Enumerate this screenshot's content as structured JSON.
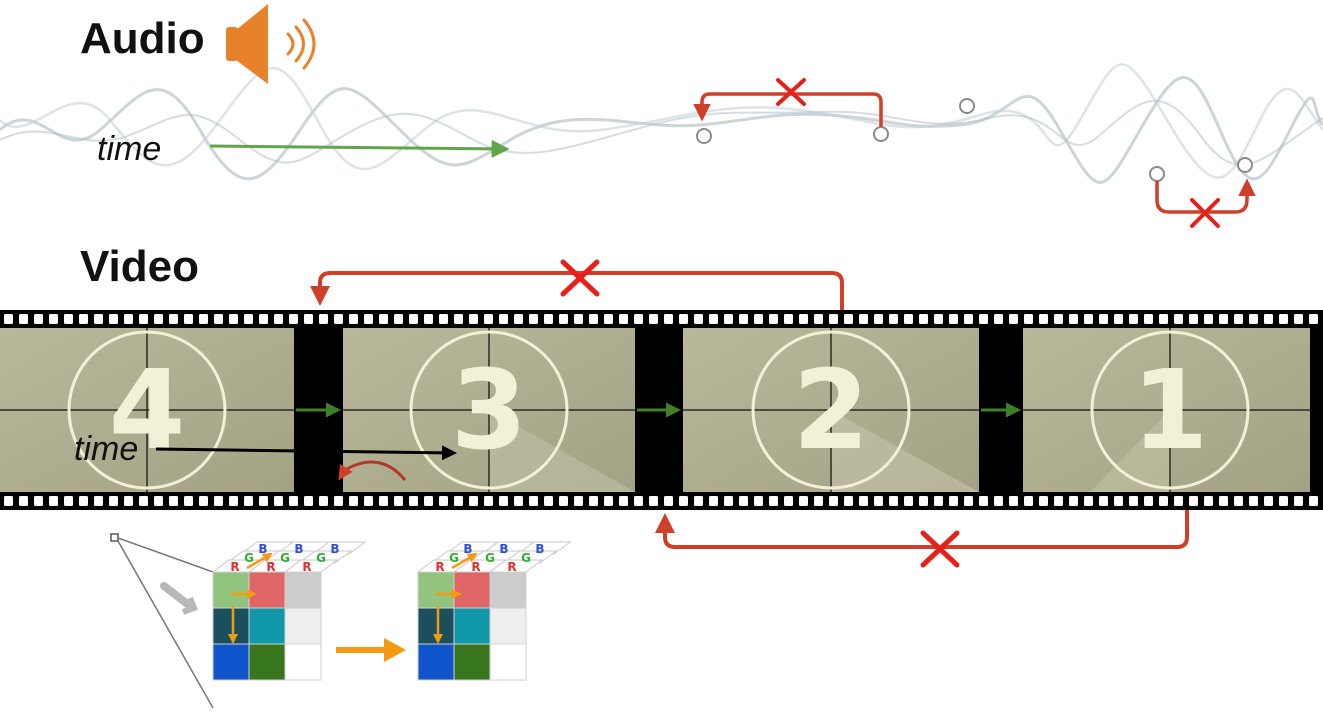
{
  "headings": {
    "audio": "Audio",
    "video": "Video"
  },
  "labels": {
    "time_audio": "time",
    "time_video": "time"
  },
  "frames": [
    "4",
    "3",
    "2",
    "1"
  ],
  "channels": {
    "r": "R",
    "g": "G",
    "b": "B"
  },
  "icons": {
    "speaker": "speaker-icon",
    "invalid_mark": "red-x-icon"
  },
  "colors": {
    "arrow_valid": "#5fa64a",
    "arrow_frame": "#3f7f2a",
    "arrow_invalid": "#cf3f2a",
    "cross": "#e8201c",
    "speaker": "#e8822a",
    "pixel_arrow": "#f29a12"
  }
}
